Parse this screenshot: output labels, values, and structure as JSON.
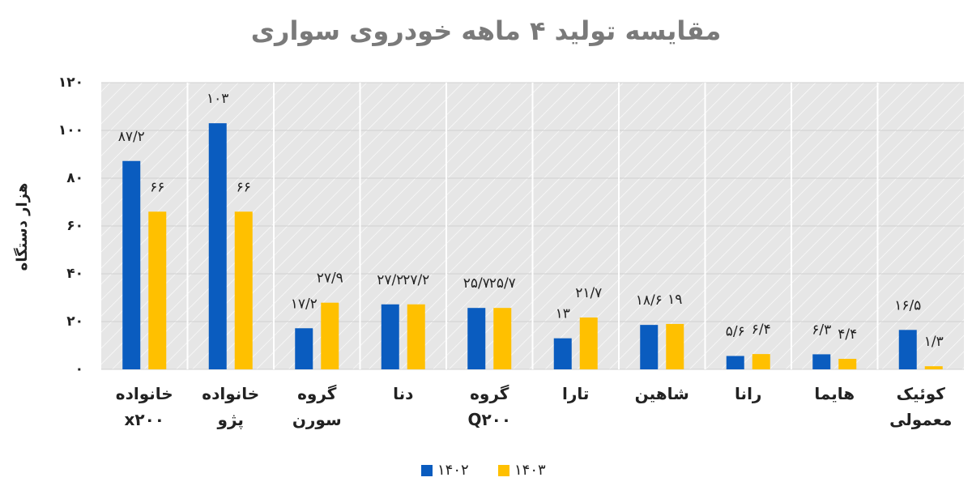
{
  "chart_data": {
    "type": "bar",
    "title": "مقایسه تولید ۴ ماهه خودروی سواری",
    "y_label": "هزار دستگاه",
    "categories": [
      "خانواده\nx۲۰۰",
      "خانواده\nپژو",
      "گروه\nسورن",
      "دنا",
      "گروه\nQ۲۰۰",
      "تارا",
      "شاهین",
      "رانا",
      "هایما",
      "کوئیک\nمعمولی"
    ],
    "series": [
      {
        "name": "۱۴۰۲",
        "color": "#0a5cbf",
        "values": [
          87.2,
          103,
          17.2,
          27.2,
          25.7,
          13,
          18.6,
          5.6,
          6.3,
          16.5
        ],
        "value_labels": [
          "۸۷/۲",
          "۱۰۳",
          "۱۷/۲",
          "۲۷/۲",
          "۲۵/۷",
          "۱۳",
          "۱۸/۶",
          "۵/۶",
          "۶/۳",
          "۱۶/۵"
        ]
      },
      {
        "name": "۱۴۰۳",
        "color": "#ffc000",
        "values": [
          66,
          66,
          27.9,
          27.2,
          25.7,
          21.7,
          19,
          6.4,
          4.4,
          1.3
        ],
        "value_labels": [
          "۶۶",
          "۶۶",
          "۲۷/۹",
          "۲۷/۲",
          "۲۵/۷",
          "۲۱/۷",
          "۱۹",
          "۶/۴",
          "۴/۴",
          "۱/۳"
        ]
      }
    ],
    "ylim": [
      0,
      120
    ],
    "yticks": [
      {
        "value": 0,
        "label": "۰"
      },
      {
        "value": 20,
        "label": "۲۰"
      },
      {
        "value": 40,
        "label": "۴۰"
      },
      {
        "value": 60,
        "label": "۶۰"
      },
      {
        "value": 80,
        "label": "۸۰"
      },
      {
        "value": 100,
        "label": "۱۰۰"
      },
      {
        "value": 120,
        "label": "۱۲۰"
      }
    ],
    "grid": true
  }
}
